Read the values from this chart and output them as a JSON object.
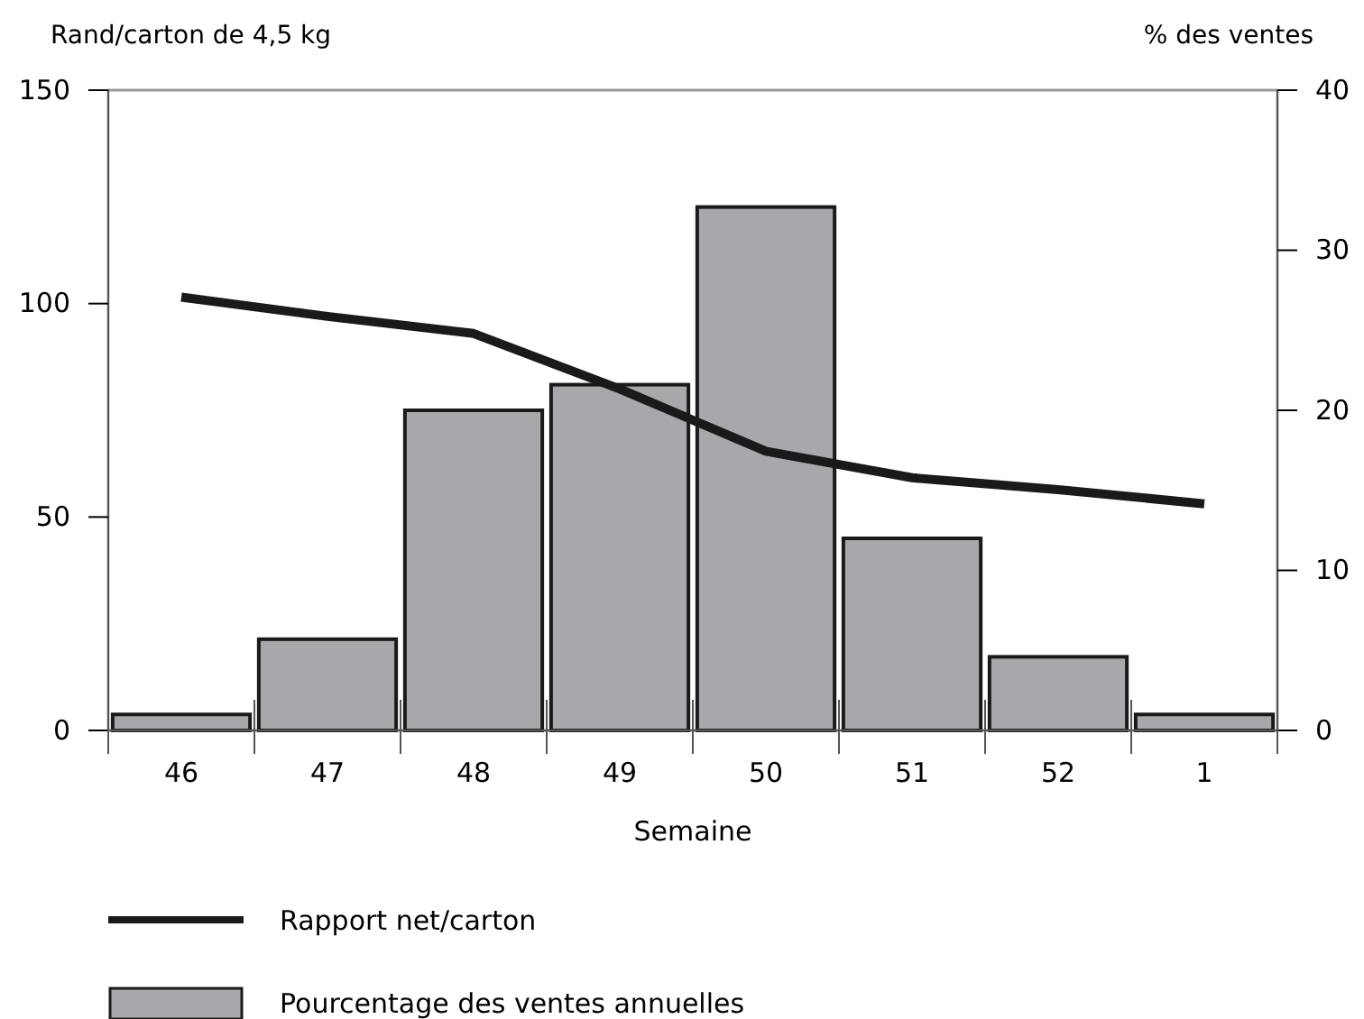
{
  "chart_data": {
    "type": "bar",
    "xlabel": "Semaine",
    "ylabel": "Rand/carton de 4,5 kg",
    "y2label": "% des ventes",
    "categories": [
      "46",
      "47",
      "48",
      "49",
      "50",
      "51",
      "52",
      "1"
    ],
    "series": [
      {
        "name": "Pourcentage des ventes annuelles",
        "axis": "y2",
        "color": "#a7a8ab",
        "values": [
          1.0,
          5.7,
          20.0,
          21.6,
          32.7,
          12.0,
          4.6,
          1.0
        ]
      },
      {
        "name": "Rapport net/carton",
        "type": "line",
        "axis": "y",
        "color": "#1a1a1a",
        "values": [
          101.5,
          97,
          93,
          80,
          65.4,
          59.2,
          56.4,
          53.1
        ]
      }
    ],
    "ylim": [
      0,
      150
    ],
    "yticks": [
      0,
      50,
      100,
      150
    ],
    "y2lim": [
      0,
      40
    ],
    "y2ticks": [
      0,
      10,
      20,
      30,
      40
    ],
    "grid": false,
    "legend": "bottom",
    "marker": "none",
    "line_style": "solid"
  }
}
